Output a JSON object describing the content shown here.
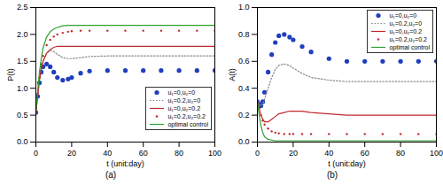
{
  "chart_data": [
    {
      "type": "line",
      "title": "(a)",
      "x_label": "t (unit:day)",
      "y_label": "P(t)",
      "x": [
        0,
        1,
        2,
        3,
        4,
        6,
        8,
        10,
        12,
        15,
        18,
        20,
        25,
        30,
        40,
        50,
        60,
        70,
        80,
        90,
        100
      ],
      "xlim": [
        0,
        100
      ],
      "xticks": [
        0,
        20,
        40,
        60,
        80,
        100
      ],
      "ylim": [
        0,
        2.5
      ],
      "yticks": [
        0,
        0.5,
        1,
        1.5,
        2,
        2.5
      ],
      "grid": false,
      "legend": "lower right",
      "series": [
        {
          "name": "u₁=0,u₂=0",
          "color": "#1f3fbf",
          "marker": "circle",
          "line_style": "none",
          "values": [
            0.55,
            0.85,
            1.1,
            1.3,
            1.4,
            1.45,
            1.4,
            1.3,
            1.2,
            1.15,
            1.17,
            1.2,
            1.28,
            1.32,
            1.33,
            1.33,
            1.33,
            1.33,
            1.33,
            1.33,
            1.33
          ]
        },
        {
          "name": "u₁=0.2,u₂=0",
          "color": "#888888",
          "marker": "none",
          "line_style": "dotted",
          "values": [
            0.55,
            0.85,
            1.15,
            1.35,
            1.5,
            1.65,
            1.7,
            1.68,
            1.63,
            1.57,
            1.55,
            1.55,
            1.57,
            1.59,
            1.6,
            1.6,
            1.6,
            1.6,
            1.6,
            1.6,
            1.6
          ]
        },
        {
          "name": "u₁=0,u₂=0.2",
          "color": "#c0282d",
          "marker": "none",
          "line_style": "solid",
          "values": [
            0.55,
            0.85,
            1.15,
            1.35,
            1.5,
            1.65,
            1.72,
            1.76,
            1.78,
            1.78,
            1.78,
            1.78,
            1.78,
            1.78,
            1.78,
            1.78,
            1.78,
            1.78,
            1.78,
            1.78,
            1.78
          ]
        },
        {
          "name": "u₁=0.2,u₂=0.2",
          "color": "#c0282d",
          "marker": "point",
          "line_style": "none",
          "values": [
            0.55,
            0.9,
            1.2,
            1.45,
            1.6,
            1.8,
            1.9,
            1.96,
            2.0,
            2.03,
            2.05,
            2.06,
            2.07,
            2.07,
            2.07,
            2.07,
            2.07,
            2.07,
            2.07,
            2.07,
            2.07
          ]
        },
        {
          "name": "optimal control",
          "color": "#2ca02c",
          "marker": "none",
          "line_style": "solid",
          "values": [
            0.55,
            0.95,
            1.3,
            1.55,
            1.75,
            1.95,
            2.05,
            2.1,
            2.13,
            2.16,
            2.17,
            2.17,
            2.17,
            2.17,
            2.17,
            2.17,
            2.17,
            2.17,
            2.17,
            2.17,
            2.17
          ]
        }
      ]
    },
    {
      "type": "line",
      "title": "(b)",
      "x_label": "t (unit:day)",
      "y_label": "A(t)",
      "x": [
        0,
        1,
        2,
        3,
        4,
        6,
        8,
        10,
        12,
        15,
        18,
        20,
        25,
        30,
        40,
        50,
        60,
        70,
        80,
        90,
        100
      ],
      "xlim": [
        0,
        100
      ],
      "xticks": [
        0,
        20,
        40,
        60,
        80,
        100
      ],
      "ylim": [
        0,
        1
      ],
      "yticks": [
        0,
        0.2,
        0.4,
        0.6,
        0.8,
        1
      ],
      "grid": false,
      "legend": "upper right",
      "series": [
        {
          "name": "u₁=0,u₂=0",
          "color": "#1f3fbf",
          "marker": "circle",
          "line_style": "none",
          "values": [
            0.3,
            0.28,
            0.27,
            0.3,
            0.37,
            0.52,
            0.65,
            0.74,
            0.79,
            0.8,
            0.78,
            0.76,
            0.71,
            0.67,
            0.62,
            0.6,
            0.6,
            0.6,
            0.6,
            0.6,
            0.6
          ]
        },
        {
          "name": "u₁=0.2,u₂=0",
          "color": "#888888",
          "marker": "none",
          "line_style": "dotted",
          "values": [
            0.3,
            0.28,
            0.27,
            0.28,
            0.32,
            0.4,
            0.48,
            0.54,
            0.57,
            0.58,
            0.57,
            0.55,
            0.51,
            0.48,
            0.46,
            0.45,
            0.45,
            0.45,
            0.45,
            0.45,
            0.45
          ]
        },
        {
          "name": "u₁=0,u₂=0.2",
          "color": "#c0282d",
          "marker": "none",
          "line_style": "solid",
          "values": [
            0.3,
            0.25,
            0.2,
            0.17,
            0.15,
            0.15,
            0.17,
            0.19,
            0.21,
            0.22,
            0.23,
            0.23,
            0.23,
            0.22,
            0.21,
            0.2,
            0.2,
            0.2,
            0.2,
            0.2,
            0.2
          ]
        },
        {
          "name": "u₁=0.2,u₂=0.2",
          "color": "#c0282d",
          "marker": "point",
          "line_style": "none",
          "values": [
            0.3,
            0.25,
            0.2,
            0.16,
            0.13,
            0.1,
            0.08,
            0.07,
            0.065,
            0.06,
            0.06,
            0.06,
            0.06,
            0.06,
            0.06,
            0.06,
            0.06,
            0.06,
            0.06,
            0.06,
            0.06
          ]
        },
        {
          "name": "optimal control",
          "color": "#2ca02c",
          "marker": "none",
          "line_style": "solid",
          "values": [
            0.3,
            0.2,
            0.12,
            0.07,
            0.04,
            0.02,
            0.015,
            0.01,
            0.01,
            0.01,
            0.01,
            0.01,
            0.01,
            0.01,
            0.01,
            0.01,
            0.01,
            0.01,
            0.01,
            0.01,
            0.01
          ]
        }
      ]
    }
  ]
}
